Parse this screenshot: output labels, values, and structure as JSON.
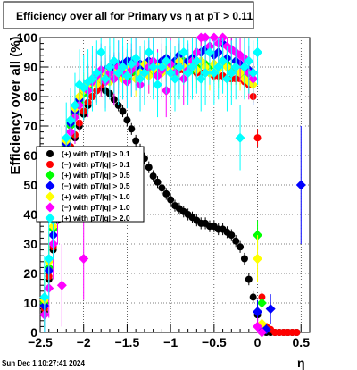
{
  "chart_data": {
    "type": "scatter",
    "title": "Efficiency over all for Primary vs    η at pT > 0.11",
    "xlabel": "η",
    "ylabel": "Efficiency over all (%)",
    "xlim": [
      -2.5,
      0.6
    ],
    "ylim": [
      0,
      100
    ],
    "x_ticks": [
      "−2.5",
      "−2",
      "−1.5",
      "−1",
      "−0.5",
      "0",
      "0.5"
    ],
    "x_tick_values": [
      -2.5,
      -2,
      -1.5,
      -1,
      -0.5,
      0,
      0.5
    ],
    "y_ticks": [
      "0",
      "10",
      "20",
      "30",
      "40",
      "50",
      "60",
      "70",
      "80",
      "90",
      "100"
    ],
    "y_tick_values": [
      0,
      10,
      20,
      30,
      40,
      50,
      60,
      70,
      80,
      90,
      100
    ],
    "grid": true,
    "legend_position": "left-middle",
    "series": [
      {
        "name": "(+) with pT/|q| > 0.1",
        "color": "#000000",
        "x": [
          -2.45,
          -2.4,
          -2.35,
          -2.3,
          -2.25,
          -2.2,
          -2.15,
          -2.1,
          -2.05,
          -2.0,
          -1.95,
          -1.9,
          -1.85,
          -1.8,
          -1.75,
          -1.7,
          -1.65,
          -1.6,
          -1.55,
          -1.5,
          -1.45,
          -1.4,
          -1.35,
          -1.3,
          -1.25,
          -1.2,
          -1.15,
          -1.1,
          -1.05,
          -1.0,
          -0.95,
          -0.9,
          -0.85,
          -0.8,
          -0.75,
          -0.7,
          -0.65,
          -0.6,
          -0.55,
          -0.5,
          -0.45,
          -0.4,
          -0.35,
          -0.3,
          -0.25,
          -0.2,
          -0.15,
          -0.1,
          -0.05,
          0.0,
          0.05,
          0.1,
          0.15,
          0.2,
          0.25,
          0.3,
          0.35,
          0.4,
          0.45
        ],
        "y": [
          7,
          18,
          28,
          38,
          48,
          56,
          62,
          66,
          70,
          74,
          77,
          80,
          82,
          83,
          82,
          81,
          79,
          77,
          75,
          72,
          69,
          65,
          62,
          59,
          56,
          53,
          51,
          49,
          47,
          45,
          43,
          42,
          41,
          40,
          39,
          38,
          37,
          37,
          36,
          36,
          35,
          35,
          34,
          33,
          31,
          29,
          25,
          18,
          12,
          6,
          1,
          0,
          0,
          0,
          0,
          0,
          0,
          0,
          0
        ],
        "yerr": [
          3,
          4,
          3,
          3,
          3,
          2,
          2,
          2,
          2,
          2,
          2,
          2,
          2,
          2,
          2,
          2,
          2,
          2,
          2,
          2,
          2,
          2,
          2,
          2,
          2,
          2,
          2,
          2,
          2,
          2,
          2,
          2,
          2,
          2,
          2,
          2,
          2,
          2,
          2,
          2,
          2,
          2,
          2,
          2,
          2,
          2,
          2,
          2,
          2,
          2,
          1,
          1,
          1,
          1,
          1,
          1,
          1,
          1,
          1
        ]
      },
      {
        "name": "(−) with pT/|q| > 0.1",
        "color": "#ff0000",
        "x": [
          -2.45,
          -2.4,
          -2.35,
          -2.3,
          -2.25,
          -2.2,
          -2.15,
          -2.1,
          -2.05,
          -2.0,
          -1.95,
          -1.9,
          -1.85,
          -1.8,
          -1.75,
          -1.7,
          -1.65,
          -1.6,
          -1.55,
          -1.5,
          -1.45,
          -1.4,
          -1.35,
          -1.3,
          -1.25,
          -1.2,
          -1.15,
          -1.1,
          -1.05,
          -1.0,
          -0.95,
          -0.9,
          -0.85,
          -0.8,
          -0.75,
          -0.7,
          -0.65,
          -0.6,
          -0.55,
          -0.5,
          -0.45,
          -0.4,
          -0.35,
          -0.3,
          -0.25,
          -0.2,
          -0.15,
          -0.1,
          -0.05,
          0.0,
          0.05,
          0.1,
          0.15,
          0.2,
          0.25,
          0.3,
          0.35,
          0.4,
          0.45
        ],
        "y": [
          8,
          19,
          29,
          39,
          49,
          57,
          63,
          67,
          71,
          75,
          78,
          80,
          82,
          84,
          85,
          86,
          86,
          87,
          87,
          87,
          88,
          88,
          88,
          88,
          88,
          88,
          89,
          89,
          89,
          89,
          89,
          89,
          89,
          89,
          89,
          88,
          88,
          88,
          88,
          87,
          87,
          87,
          86,
          86,
          86,
          86,
          85,
          84,
          80,
          66,
          12,
          2,
          1,
          0,
          0,
          0,
          0,
          0,
          0
        ],
        "yerr": [
          3,
          4,
          3,
          3,
          3,
          2,
          2,
          2,
          2,
          2,
          2,
          2,
          2,
          2,
          2,
          2,
          2,
          2,
          2,
          2,
          2,
          2,
          2,
          2,
          2,
          2,
          2,
          2,
          2,
          2,
          2,
          2,
          2,
          2,
          2,
          2,
          2,
          2,
          2,
          2,
          2,
          2,
          2,
          2,
          2,
          2,
          2,
          2,
          2,
          3,
          2,
          1,
          1,
          1,
          1,
          1,
          1,
          1,
          1
        ]
      },
      {
        "name": "(+) with pT/|q| > 0.5",
        "color": "#00ff00",
        "x": [
          -2.45,
          -2.4,
          -2.35,
          -2.3,
          -2.25,
          -2.2,
          -2.15,
          -2.1,
          -2.05,
          -2.0,
          -1.95,
          -1.9,
          -1.85,
          -1.8,
          -1.75,
          -1.7,
          -1.65,
          -1.6,
          -1.55,
          -1.5,
          -1.45,
          -1.4,
          -1.35,
          -1.3,
          -1.25,
          -1.2,
          -1.15,
          -1.1,
          -1.05,
          -1.0,
          -0.95,
          -0.9,
          -0.85,
          -0.8,
          -0.75,
          -0.7,
          -0.65,
          -0.6,
          -0.55,
          -0.5,
          -0.45,
          -0.4,
          -0.35,
          -0.3,
          -0.25,
          -0.2,
          -0.15,
          -0.1,
          -0.05,
          0.0,
          0.05,
          0.1
        ],
        "y": [
          10,
          22,
          35,
          46,
          55,
          63,
          70,
          74,
          78,
          81,
          83,
          85,
          86,
          87,
          88,
          87,
          89,
          88,
          90,
          86,
          90,
          88,
          89,
          91,
          88,
          90,
          91,
          89,
          90,
          91,
          90,
          91,
          92,
          91,
          89,
          90,
          92,
          91,
          90,
          91,
          90,
          92,
          91,
          89,
          90,
          88,
          87,
          89,
          86,
          33,
          10,
          1
        ],
        "yerr": [
          8,
          8,
          7,
          7,
          6,
          5,
          5,
          5,
          4,
          4,
          4,
          4,
          4,
          4,
          4,
          4,
          4,
          4,
          4,
          5,
          4,
          4,
          4,
          4,
          4,
          4,
          4,
          4,
          4,
          4,
          4,
          4,
          4,
          4,
          4,
          4,
          4,
          4,
          4,
          4,
          4,
          4,
          4,
          4,
          4,
          4,
          4,
          4,
          5,
          5,
          3,
          2
        ]
      },
      {
        "name": "(−) with pT/|q| > 0.5",
        "color": "#0000ff",
        "x": [
          -2.45,
          -2.4,
          -2.35,
          -2.3,
          -2.25,
          -2.2,
          -2.15,
          -2.1,
          -2.05,
          -2.0,
          -1.95,
          -1.9,
          -1.85,
          -1.8,
          -1.75,
          -1.7,
          -1.65,
          -1.6,
          -1.55,
          -1.5,
          -1.45,
          -1.4,
          -1.35,
          -1.3,
          -1.25,
          -1.2,
          -1.15,
          -1.1,
          -1.05,
          -1.0,
          -0.95,
          -0.9,
          -0.85,
          -0.8,
          -0.75,
          -0.7,
          -0.65,
          -0.6,
          -0.55,
          -0.5,
          -0.45,
          -0.4,
          -0.35,
          -0.3,
          -0.25,
          -0.2,
          -0.15,
          -0.1,
          -0.05,
          0.0,
          0.05,
          0.1,
          0.15,
          0.5
        ],
        "y": [
          9,
          21,
          33,
          45,
          56,
          64,
          71,
          75,
          79,
          82,
          84,
          86,
          87,
          88,
          89,
          90,
          90,
          91,
          91,
          92,
          92,
          90,
          91,
          90,
          92,
          91,
          90,
          92,
          93,
          91,
          92,
          94,
          91,
          92,
          93,
          92,
          95,
          96,
          97,
          94,
          95,
          98,
          93,
          96,
          92,
          91,
          90,
          89,
          88,
          7,
          1,
          1,
          8,
          50
        ],
        "yerr": [
          7,
          7,
          6,
          6,
          5,
          5,
          4,
          4,
          4,
          4,
          4,
          4,
          4,
          4,
          4,
          4,
          4,
          4,
          4,
          4,
          4,
          4,
          4,
          4,
          4,
          4,
          4,
          4,
          4,
          4,
          4,
          4,
          4,
          4,
          4,
          4,
          4,
          4,
          4,
          4,
          4,
          4,
          4,
          4,
          4,
          4,
          4,
          4,
          4,
          4,
          2,
          2,
          5,
          20
        ]
      },
      {
        "name": "(+) with pT/|q| > 1.0",
        "color": "#ffff00",
        "x": [
          -2.45,
          -2.4,
          -2.35,
          -2.3,
          -2.25,
          -2.2,
          -2.15,
          -2.1,
          -2.05,
          -2.0,
          -1.95,
          -1.9,
          -1.85,
          -1.8,
          -1.75,
          -1.7,
          -1.65,
          -1.6,
          -1.55,
          -1.5,
          -1.45,
          -1.4,
          -1.35,
          -1.3,
          -1.25,
          -1.2,
          -1.15,
          -1.1,
          -1.05,
          -1.0,
          -0.95,
          -0.9,
          -0.85,
          -0.8,
          -0.75,
          -0.7,
          -0.65,
          -0.6,
          -0.55,
          -0.5,
          -0.45,
          -0.4,
          -0.35,
          -0.3,
          -0.25,
          -0.2,
          -0.15,
          -0.1,
          -0.05,
          0.0,
          0.05
        ],
        "y": [
          11,
          24,
          36,
          48,
          57,
          65,
          72,
          76,
          80,
          82,
          84,
          86,
          84,
          86,
          88,
          85,
          87,
          89,
          86,
          88,
          90,
          86,
          88,
          91,
          87,
          89,
          90,
          88,
          91,
          89,
          87,
          92,
          90,
          88,
          91,
          89,
          92,
          90,
          88,
          91,
          89,
          92,
          90,
          88,
          90,
          88,
          86,
          85,
          84,
          25,
          3
        ],
        "yerr": [
          10,
          10,
          9,
          8,
          8,
          7,
          7,
          6,
          6,
          6,
          6,
          6,
          6,
          6,
          6,
          6,
          6,
          6,
          6,
          6,
          6,
          6,
          6,
          6,
          6,
          6,
          6,
          6,
          6,
          6,
          6,
          6,
          6,
          6,
          6,
          6,
          6,
          6,
          6,
          6,
          6,
          6,
          6,
          6,
          6,
          6,
          6,
          6,
          6,
          8,
          3
        ]
      },
      {
        "name": "(−) with pT/|q| > 1.0",
        "color": "#ff00ff",
        "x": [
          -2.45,
          -2.4,
          -2.35,
          -2.3,
          -2.25,
          -2.2,
          -2.15,
          -2.1,
          -2.05,
          -2.0,
          -1.95,
          -1.9,
          -1.85,
          -1.8,
          -1.75,
          -1.7,
          -1.65,
          -1.6,
          -1.55,
          -1.5,
          -1.45,
          -1.4,
          -1.35,
          -1.3,
          -1.25,
          -1.2,
          -1.15,
          -1.1,
          -1.05,
          -1.0,
          -0.95,
          -0.9,
          -0.85,
          -0.8,
          -0.75,
          -0.7,
          -0.65,
          -0.6,
          -0.55,
          -0.5,
          -0.45,
          -0.4,
          -0.35,
          -0.3,
          -0.25,
          -0.2,
          -0.15,
          -0.1,
          -0.05,
          0.0,
          0.05
        ],
        "y": [
          6,
          15,
          30,
          42,
          16,
          60,
          68,
          73,
          77,
          25,
          82,
          85,
          87,
          89,
          85,
          88,
          86,
          90,
          88,
          85,
          89,
          91,
          84,
          88,
          90,
          92,
          87,
          89,
          82,
          91,
          88,
          90,
          86,
          89,
          92,
          95,
          100,
          100,
          97,
          100,
          98,
          100,
          97,
          96,
          95,
          94,
          93,
          88,
          86,
          2,
          0
        ],
        "yerr": [
          10,
          10,
          12,
          12,
          14,
          10,
          10,
          9,
          9,
          14,
          9,
          9,
          9,
          9,
          9,
          9,
          9,
          9,
          9,
          9,
          9,
          9,
          9,
          9,
          9,
          9,
          9,
          9,
          9,
          9,
          9,
          9,
          9,
          9,
          9,
          9,
          9,
          9,
          9,
          9,
          9,
          9,
          9,
          9,
          9,
          9,
          9,
          9,
          9,
          3,
          2
        ]
      },
      {
        "name": "(+) with pT/|q| > 2.0",
        "color": "#00ffff",
        "x": [
          -2.45,
          -2.4,
          -2.35,
          -2.3,
          -2.25,
          -2.2,
          -2.15,
          -2.1,
          -2.05,
          -2.0,
          -1.95,
          -1.9,
          -1.85,
          -1.8,
          -1.75,
          -1.7,
          -1.65,
          -1.6,
          -1.55,
          -1.5,
          -1.45,
          -1.4,
          -1.35,
          -1.3,
          -1.25,
          -1.2,
          -1.15,
          -1.1,
          -1.05,
          -1.0,
          -0.95,
          -0.9,
          -0.85,
          -0.8,
          -0.75,
          -0.7,
          -0.65,
          -0.6,
          -0.55,
          -0.5,
          -0.45,
          -0.4,
          -0.35,
          -0.3,
          -0.25,
          -0.2,
          -0.15,
          -0.1,
          -0.05,
          0.0
        ],
        "y": [
          12,
          25,
          38,
          50,
          58,
          66,
          72,
          77,
          84,
          83,
          85,
          86,
          88,
          95,
          86,
          90,
          92,
          88,
          90,
          87,
          91,
          93,
          86,
          88,
          95,
          90,
          84,
          90,
          92,
          88,
          86,
          90,
          95,
          88,
          90,
          92,
          86,
          88,
          95,
          88,
          90,
          92,
          86,
          88,
          90,
          66,
          90,
          92,
          88,
          95
        ],
        "yerr": [
          14,
          14,
          13,
          13,
          12,
          12,
          11,
          11,
          12,
          11,
          11,
          11,
          11,
          11,
          11,
          11,
          11,
          11,
          11,
          11,
          11,
          11,
          11,
          11,
          11,
          11,
          11,
          11,
          11,
          11,
          11,
          11,
          11,
          11,
          11,
          11,
          11,
          11,
          11,
          11,
          11,
          11,
          11,
          11,
          11,
          11,
          11,
          11,
          11,
          11
        ]
      }
    ]
  },
  "footer": {
    "timestamp": "Sun Dec  1 10:27:41 2024"
  }
}
